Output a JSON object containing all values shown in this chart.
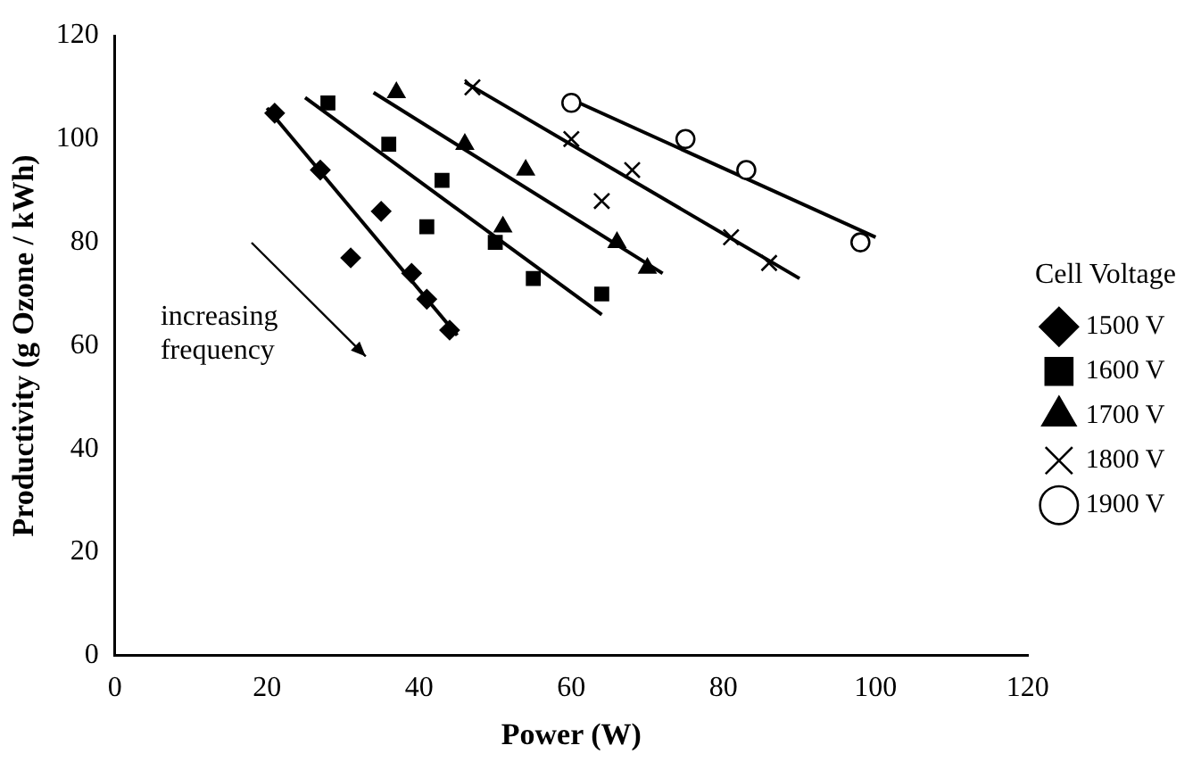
{
  "chart_data": {
    "type": "scatter",
    "xlabel": "Power (W)",
    "ylabel": "Productivity (g Ozone / kWh)",
    "legend_title": "Cell Voltage",
    "legend": "right",
    "grid": false,
    "xlim": [
      0,
      120
    ],
    "xticks": [
      0,
      20,
      40,
      60,
      80,
      100,
      120
    ],
    "ylim": [
      0,
      120
    ],
    "yticks": [
      0,
      20,
      40,
      60,
      80,
      100,
      120
    ],
    "annotations": [
      "increasing frequency"
    ],
    "series": [
      {
        "name": "1500 V",
        "color": "#000000",
        "marker": "diamond",
        "x": [
          21,
          27,
          31,
          35,
          39,
          41,
          44
        ],
        "values": [
          105,
          94,
          77,
          86,
          74,
          69,
          63
        ]
      },
      {
        "name": "1600 V",
        "color": "#000000",
        "marker": "square",
        "x": [
          28,
          36,
          41,
          43,
          50,
          55,
          64
        ],
        "values": [
          107,
          99,
          83,
          92,
          80,
          73,
          70
        ]
      },
      {
        "name": "1700 V",
        "color": "#000000",
        "marker": "triangle",
        "x": [
          37,
          46,
          51,
          54,
          66,
          70
        ],
        "values": [
          109,
          99,
          83,
          94,
          80,
          75
        ]
      },
      {
        "name": "1800 V",
        "color": "#000000",
        "marker": "cross",
        "x": [
          47,
          60,
          64,
          68,
          81,
          86
        ],
        "values": [
          110,
          100,
          88,
          94,
          81,
          76
        ]
      },
      {
        "name": "1900 V",
        "color": "#000000",
        "marker": "circle",
        "x": [
          60,
          75,
          83,
          98
        ],
        "values": [
          107,
          100,
          94,
          80
        ]
      },
      {
        "type": "line",
        "color": "#000000",
        "marker": "none",
        "x": [
          20,
          45
        ],
        "values": [
          106,
          62
        ]
      },
      {
        "type": "line",
        "color": "#000000",
        "marker": "none",
        "x": [
          25,
          64
        ],
        "values": [
          108,
          66
        ]
      },
      {
        "type": "line",
        "color": "#000000",
        "marker": "none",
        "x": [
          34,
          72
        ],
        "values": [
          109,
          74
        ]
      },
      {
        "type": "line",
        "color": "#000000",
        "marker": "none",
        "x": [
          46,
          90
        ],
        "values": [
          111,
          73
        ]
      },
      {
        "type": "line",
        "color": "#000000",
        "marker": "none",
        "x": [
          61,
          100
        ],
        "values": [
          107,
          81
        ]
      }
    ]
  }
}
